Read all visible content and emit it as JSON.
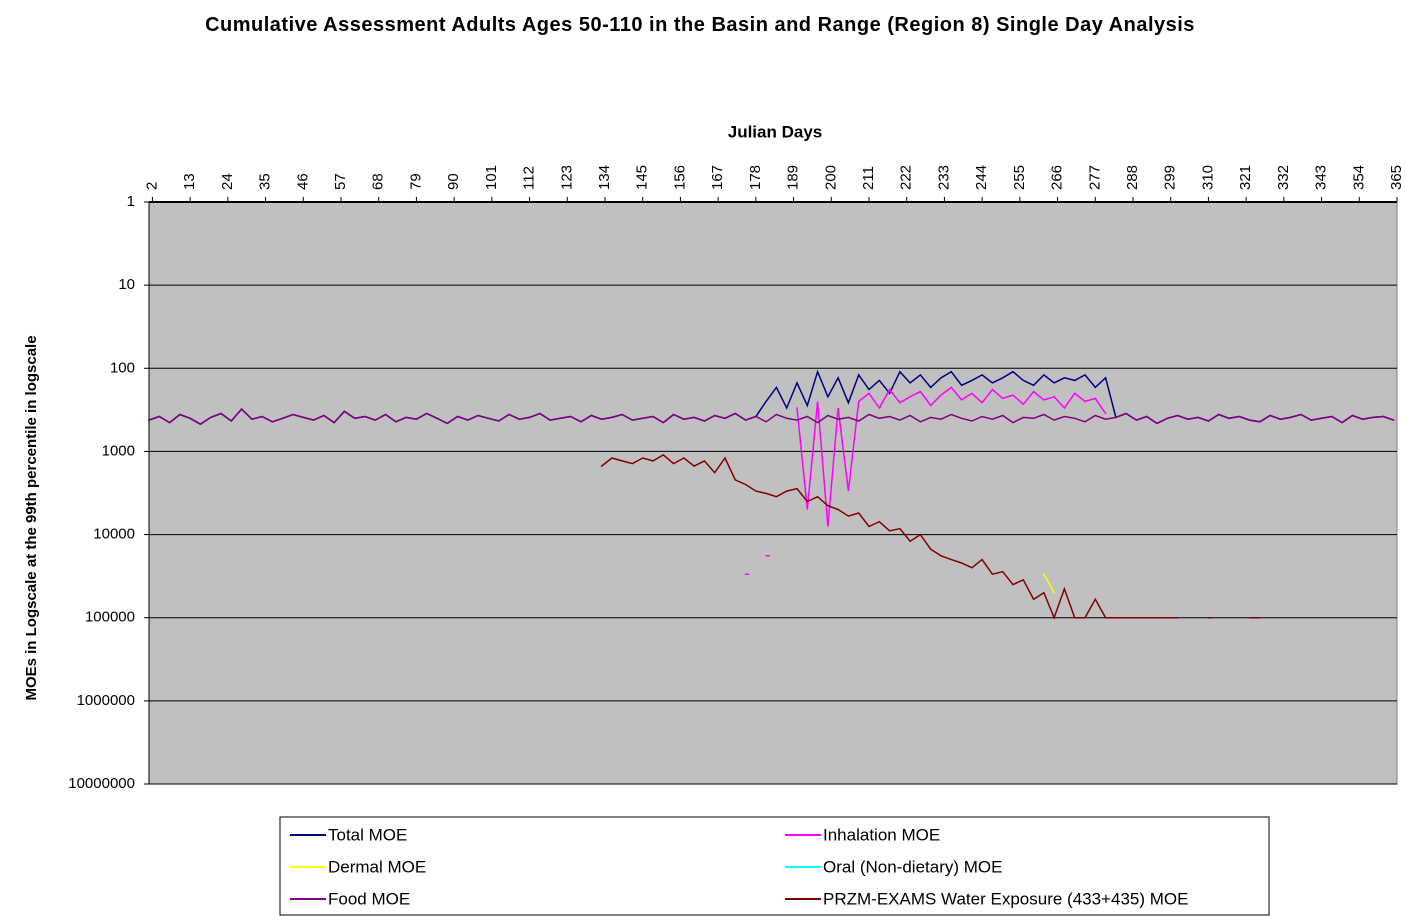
{
  "chart_data": {
    "type": "line",
    "title": "Cumulative Assessment Adults Ages 50-110 in the Basin and Range (Region 8) Single Day Analysis",
    "x_label": "Julian Days",
    "y_label": "MOEs in Logscale at the 99th percentile in logscale",
    "log_y": true,
    "y_reversed": true,
    "grid": true,
    "background": "#c0c0c0",
    "legend": "bottom",
    "xlim": [
      1,
      365
    ],
    "xticks": [
      2,
      13,
      24,
      35,
      46,
      57,
      68,
      79,
      90,
      101,
      112,
      123,
      134,
      145,
      156,
      167,
      178,
      189,
      200,
      211,
      222,
      233,
      244,
      255,
      266,
      277,
      288,
      299,
      310,
      321,
      332,
      343,
      354,
      365
    ],
    "ylim": [
      1,
      10000000
    ],
    "yticks": [
      1,
      10,
      100,
      1000,
      10000,
      100000,
      1000000,
      10000000
    ],
    "x": [
      1,
      4,
      7,
      10,
      13,
      16,
      19,
      22,
      25,
      28,
      31,
      34,
      37,
      40,
      43,
      46,
      49,
      52,
      55,
      58,
      61,
      64,
      67,
      70,
      73,
      76,
      79,
      82,
      85,
      88,
      91,
      94,
      97,
      100,
      103,
      106,
      109,
      112,
      115,
      118,
      121,
      124,
      127,
      130,
      133,
      136,
      139,
      142,
      145,
      148,
      151,
      154,
      157,
      160,
      163,
      166,
      169,
      172,
      175,
      178,
      181,
      184,
      187,
      190,
      193,
      196,
      199,
      202,
      205,
      208,
      211,
      214,
      217,
      220,
      223,
      226,
      229,
      232,
      235,
      238,
      241,
      244,
      247,
      250,
      253,
      256,
      259,
      262,
      265,
      268,
      271,
      274,
      277,
      280,
      283,
      286,
      289,
      292,
      295,
      298,
      301,
      304,
      307,
      310,
      313,
      316,
      319,
      322,
      325,
      328,
      331,
      334,
      337,
      340,
      343,
      346,
      349,
      352,
      355,
      358,
      361,
      364
    ],
    "series": [
      {
        "name": "Total MOE",
        "color": "#000080",
        "values": [
          420,
          380,
          450,
          360,
          400,
          470,
          390,
          350,
          430,
          310,
          410,
          380,
          440,
          400,
          360,
          390,
          420,
          370,
          450,
          330,
          400,
          380,
          420,
          360,
          440,
          390,
          410,
          350,
          400,
          460,
          380,
          420,
          370,
          400,
          430,
          360,
          410,
          390,
          350,
          420,
          400,
          380,
          440,
          370,
          410,
          390,
          360,
          420,
          400,
          380,
          450,
          360,
          410,
          390,
          430,
          370,
          400,
          350,
          420,
          380,
          250,
          170,
          300,
          150,
          280,
          110,
          220,
          130,
          260,
          120,
          180,
          140,
          200,
          110,
          150,
          120,
          170,
          130,
          110,
          160,
          140,
          120,
          150,
          130,
          110,
          140,
          160,
          120,
          150,
          130,
          140,
          120,
          170,
          130,
          390,
          350,
          420,
          380,
          460,
          400,
          370,
          410,
          390,
          430,
          360,
          400,
          380,
          420,
          440,
          370,
          410,
          390,
          360,
          420,
          400,
          380,
          450,
          370,
          410,
          390,
          380,
          420
        ]
      },
      {
        "name": "Inhalation MOE",
        "color": "#ff00ff",
        "values": [
          null,
          null,
          null,
          null,
          null,
          null,
          null,
          null,
          null,
          null,
          null,
          null,
          null,
          null,
          null,
          null,
          null,
          null,
          null,
          null,
          null,
          null,
          null,
          null,
          null,
          null,
          null,
          null,
          null,
          null,
          null,
          null,
          null,
          null,
          null,
          null,
          null,
          null,
          null,
          null,
          null,
          null,
          null,
          null,
          null,
          null,
          null,
          null,
          null,
          null,
          null,
          null,
          null,
          null,
          null,
          null,
          null,
          null,
          30000,
          null,
          18000,
          null,
          null,
          300,
          5000,
          250,
          8000,
          300,
          3000,
          250,
          200,
          300,
          180,
          260,
          220,
          190,
          280,
          210,
          170,
          240,
          200,
          260,
          180,
          230,
          210,
          270,
          190,
          240,
          220,
          300,
          200,
          250,
          230,
          350,
          null,
          null,
          null,
          null,
          null,
          null,
          null,
          null,
          null,
          null,
          null,
          null,
          null,
          null,
          null,
          null,
          null,
          null,
          null,
          null,
          null,
          null,
          null,
          null,
          null,
          null,
          null,
          null
        ]
      },
      {
        "name": "Dermal MOE",
        "color": "#ffff00",
        "values": [
          null,
          null,
          null,
          null,
          null,
          null,
          null,
          null,
          null,
          null,
          null,
          null,
          null,
          null,
          null,
          null,
          null,
          null,
          null,
          null,
          null,
          null,
          null,
          null,
          null,
          null,
          null,
          null,
          null,
          null,
          null,
          null,
          null,
          null,
          null,
          null,
          null,
          null,
          null,
          null,
          null,
          null,
          null,
          null,
          null,
          null,
          null,
          null,
          null,
          null,
          null,
          null,
          null,
          null,
          null,
          null,
          null,
          null,
          null,
          null,
          null,
          null,
          null,
          null,
          null,
          null,
          null,
          null,
          null,
          null,
          null,
          null,
          null,
          null,
          null,
          null,
          null,
          null,
          null,
          null,
          null,
          null,
          null,
          null,
          null,
          null,
          null,
          30000,
          50000,
          null,
          null,
          null,
          null,
          null,
          null,
          null,
          null,
          null,
          null,
          null,
          null,
          null,
          null,
          null,
          null,
          null,
          null,
          null,
          null,
          null,
          null,
          null,
          null,
          null,
          null,
          null,
          null,
          null,
          null,
          null,
          null,
          null
        ]
      },
      {
        "name": "Oral (Non-dietary) MOE",
        "color": "#00ffff",
        "values": [
          null,
          null,
          null,
          null,
          null,
          null,
          null,
          null,
          null,
          null,
          null,
          null,
          null,
          null,
          null,
          null,
          null,
          null,
          null,
          null,
          null,
          null,
          null,
          null,
          null,
          null,
          null,
          null,
          null,
          null,
          null,
          null,
          null,
          null,
          null,
          null,
          null,
          null,
          null,
          null,
          null,
          null,
          null,
          null,
          null,
          null,
          null,
          null,
          null,
          null,
          null,
          null,
          null,
          null,
          null,
          null,
          null,
          null,
          null,
          null,
          null,
          null,
          null,
          null,
          null,
          null,
          null,
          null,
          null,
          null,
          null,
          null,
          null,
          null,
          null,
          null,
          null,
          null,
          null,
          null,
          null,
          null,
          null,
          null,
          null,
          null,
          null,
          null,
          null,
          null,
          null,
          null,
          null,
          null,
          null,
          null,
          null,
          null,
          null,
          null,
          null,
          null,
          null,
          null,
          null,
          null,
          null,
          null,
          null,
          null,
          null,
          null,
          null,
          null,
          null,
          null,
          null,
          null,
          null,
          null,
          null,
          null
        ]
      },
      {
        "name": "Food MOE",
        "color": "#800080",
        "values": [
          420,
          380,
          450,
          360,
          400,
          470,
          390,
          350,
          430,
          310,
          410,
          380,
          440,
          400,
          360,
          390,
          420,
          370,
          450,
          330,
          400,
          380,
          420,
          360,
          440,
          390,
          410,
          350,
          400,
          460,
          380,
          420,
          370,
          400,
          430,
          360,
          410,
          390,
          350,
          420,
          400,
          380,
          440,
          370,
          410,
          390,
          360,
          420,
          400,
          380,
          450,
          360,
          410,
          390,
          430,
          370,
          400,
          350,
          420,
          380,
          440,
          360,
          400,
          420,
          380,
          450,
          370,
          410,
          390,
          430,
          360,
          400,
          380,
          420,
          370,
          440,
          390,
          410,
          360,
          400,
          430,
          380,
          410,
          370,
          450,
          390,
          400,
          360,
          420,
          380,
          400,
          440,
          370,
          410,
          390,
          350,
          420,
          380,
          460,
          400,
          370,
          410,
          390,
          430,
          360,
          400,
          380,
          420,
          440,
          370,
          410,
          390,
          360,
          420,
          400,
          380,
          450,
          370,
          410,
          390,
          380,
          420
        ]
      },
      {
        "name": "PRZM-EXAMS Water Exposure (433+435) MOE",
        "color": "#800000",
        "values": [
          null,
          null,
          null,
          null,
          null,
          null,
          null,
          null,
          null,
          null,
          null,
          null,
          null,
          null,
          null,
          null,
          null,
          null,
          null,
          null,
          null,
          null,
          null,
          null,
          null,
          null,
          null,
          null,
          null,
          null,
          null,
          null,
          null,
          null,
          null,
          null,
          null,
          null,
          null,
          null,
          null,
          null,
          null,
          null,
          1500,
          1200,
          1300,
          1400,
          1200,
          1300,
          1100,
          1400,
          1200,
          1500,
          1300,
          1800,
          1200,
          2200,
          2500,
          3000,
          3200,
          3500,
          3000,
          2800,
          4000,
          3500,
          4500,
          5000,
          6000,
          5500,
          8000,
          7000,
          9000,
          8500,
          12000,
          10000,
          15000,
          18000,
          20000,
          22000,
          25000,
          20000,
          30000,
          28000,
          40000,
          35000,
          60000,
          50000,
          100000,
          45000,
          100000,
          100000,
          60000,
          100000,
          100000,
          100000,
          100000,
          100000,
          100000,
          100000,
          100000,
          null,
          null,
          100000,
          null,
          null,
          null,
          100000,
          100000,
          null,
          null,
          null,
          null,
          null,
          null,
          null,
          null,
          null,
          null,
          null,
          null,
          null
        ]
      }
    ]
  }
}
